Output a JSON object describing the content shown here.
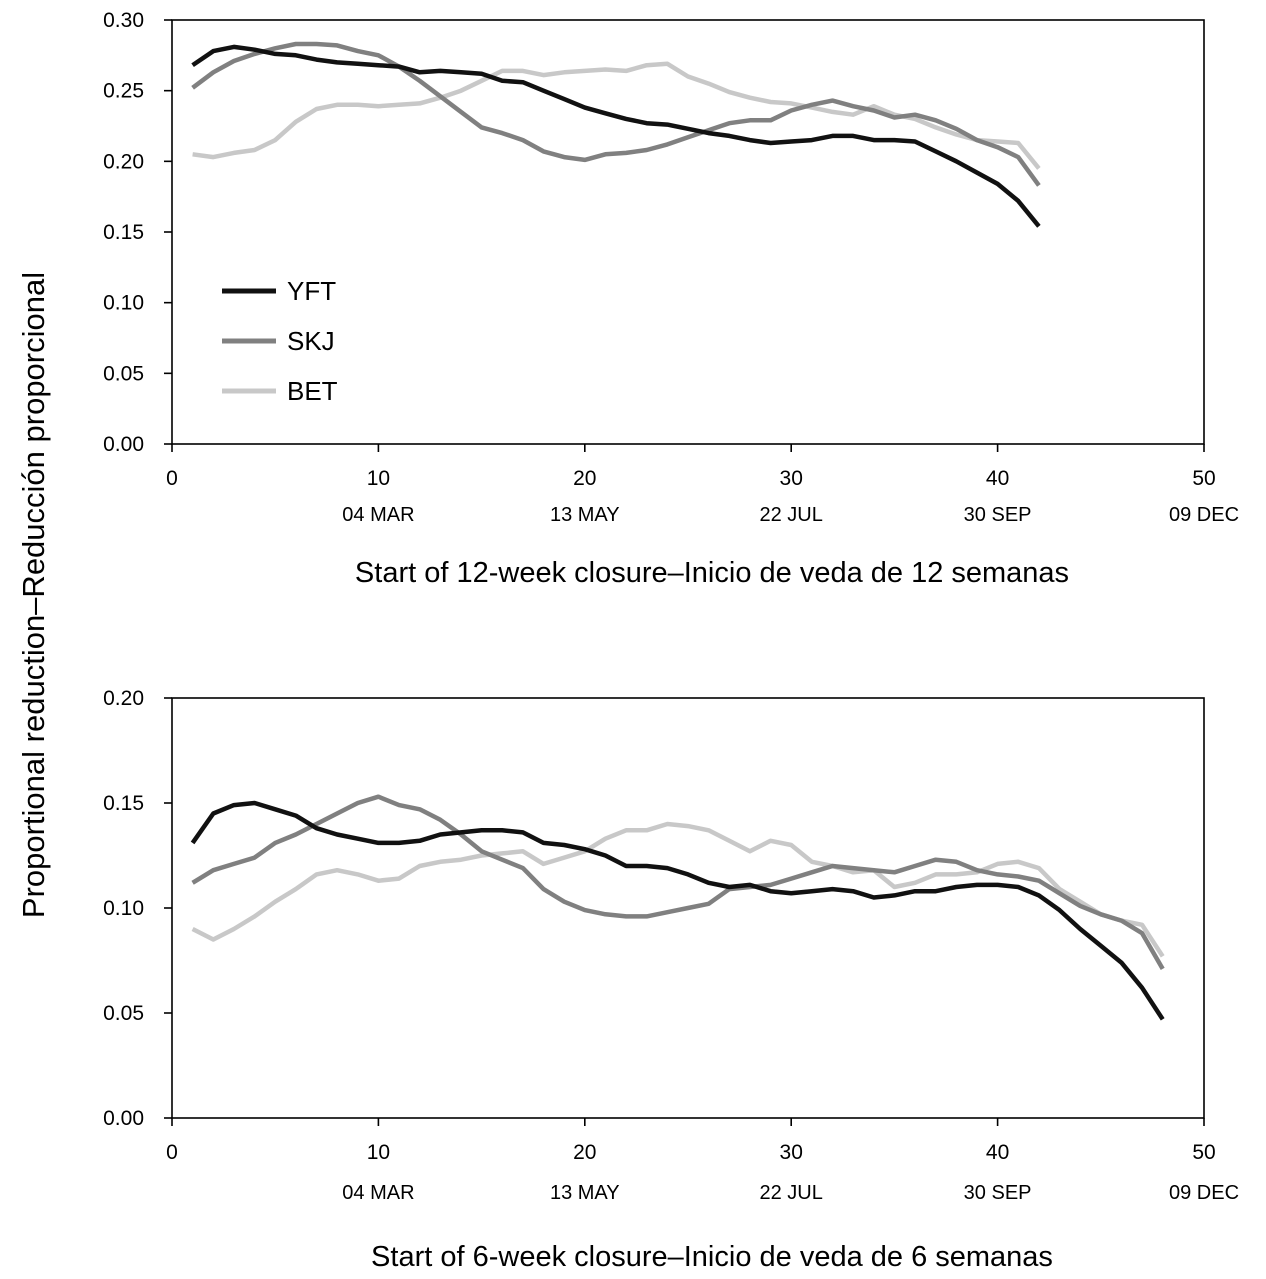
{
  "ylabel": "Proportional reduction–Reducción proporcional",
  "series_colors": {
    "YFT": "#111111",
    "SKJ": "#808080",
    "BET": "#c8c8c8"
  },
  "chart_data": [
    {
      "type": "line",
      "xlabel": "Start of 12-week closure–Inicio de veda de 12 semanas",
      "xlim": [
        0,
        50
      ],
      "ylim": [
        0,
        0.3
      ],
      "xticks": [
        0,
        10,
        20,
        30,
        40,
        50
      ],
      "yticks": [
        "0.00",
        "0.05",
        "0.10",
        "0.15",
        "0.20",
        "0.25",
        "0.30"
      ],
      "date_labels": [
        {
          "x": 10,
          "label": "04 MAR"
        },
        {
          "x": 20,
          "label": "13 MAY"
        },
        {
          "x": 30,
          "label": "22 JUL"
        },
        {
          "x": 40,
          "label": "30 SEP"
        },
        {
          "x": 50,
          "label": "09 DEC"
        }
      ],
      "legend": {
        "position": "left",
        "entries": [
          "YFT",
          "SKJ",
          "BET"
        ]
      },
      "series": [
        {
          "name": "YFT",
          "x": [
            1,
            2,
            3,
            4,
            5,
            6,
            7,
            8,
            9,
            10,
            11,
            12,
            13,
            14,
            15,
            16,
            17,
            18,
            19,
            20,
            21,
            22,
            23,
            24,
            25,
            26,
            27,
            28,
            29,
            30,
            31,
            32,
            33,
            34,
            35,
            36,
            37,
            38,
            39,
            40,
            41,
            42
          ],
          "values": [
            0.268,
            0.278,
            0.281,
            0.279,
            0.276,
            0.275,
            0.272,
            0.27,
            0.269,
            0.268,
            0.267,
            0.263,
            0.264,
            0.263,
            0.262,
            0.257,
            0.256,
            0.25,
            0.244,
            0.238,
            0.234,
            0.23,
            0.227,
            0.226,
            0.223,
            0.22,
            0.218,
            0.215,
            0.213,
            0.214,
            0.215,
            0.218,
            0.218,
            0.215,
            0.215,
            0.214,
            0.207,
            0.2,
            0.192,
            0.184,
            0.172,
            0.154
          ]
        },
        {
          "name": "SKJ",
          "x": [
            1,
            2,
            3,
            4,
            5,
            6,
            7,
            8,
            9,
            10,
            11,
            12,
            13,
            14,
            15,
            16,
            17,
            18,
            19,
            20,
            21,
            22,
            23,
            24,
            25,
            26,
            27,
            28,
            29,
            30,
            31,
            32,
            33,
            34,
            35,
            36,
            37,
            38,
            39,
            40,
            41,
            42
          ],
          "values": [
            0.252,
            0.263,
            0.271,
            0.276,
            0.28,
            0.283,
            0.283,
            0.282,
            0.278,
            0.275,
            0.267,
            0.257,
            0.246,
            0.235,
            0.224,
            0.22,
            0.215,
            0.207,
            0.203,
            0.201,
            0.205,
            0.206,
            0.208,
            0.212,
            0.217,
            0.222,
            0.227,
            0.229,
            0.229,
            0.236,
            0.24,
            0.243,
            0.239,
            0.236,
            0.231,
            0.233,
            0.229,
            0.223,
            0.215,
            0.21,
            0.203,
            0.183
          ]
        },
        {
          "name": "BET",
          "x": [
            1,
            2,
            3,
            4,
            5,
            6,
            7,
            8,
            9,
            10,
            11,
            12,
            13,
            14,
            15,
            16,
            17,
            18,
            19,
            20,
            21,
            22,
            23,
            24,
            25,
            26,
            27,
            28,
            29,
            30,
            31,
            32,
            33,
            34,
            35,
            36,
            37,
            38,
            39,
            40,
            41,
            42
          ],
          "values": [
            0.205,
            0.203,
            0.206,
            0.208,
            0.215,
            0.228,
            0.237,
            0.24,
            0.24,
            0.239,
            0.24,
            0.241,
            0.245,
            0.25,
            0.257,
            0.264,
            0.264,
            0.261,
            0.263,
            0.264,
            0.265,
            0.264,
            0.268,
            0.269,
            0.26,
            0.255,
            0.249,
            0.245,
            0.242,
            0.241,
            0.238,
            0.235,
            0.233,
            0.239,
            0.233,
            0.23,
            0.224,
            0.219,
            0.215,
            0.214,
            0.213,
            0.195
          ]
        }
      ]
    },
    {
      "type": "line",
      "xlabel": "Start of 6-week closure–Inicio de veda de 6 semanas",
      "xlim": [
        0,
        50
      ],
      "ylim": [
        0,
        0.2
      ],
      "xticks": [
        0,
        10,
        20,
        30,
        40,
        50
      ],
      "yticks": [
        "0.00",
        "0.05",
        "0.10",
        "0.15",
        "0.20"
      ],
      "date_labels": [
        {
          "x": 10,
          "label": "04 MAR"
        },
        {
          "x": 20,
          "label": "13 MAY"
        },
        {
          "x": 30,
          "label": "22 JUL"
        },
        {
          "x": 40,
          "label": "30 SEP"
        },
        {
          "x": 50,
          "label": "09 DEC"
        }
      ],
      "series": [
        {
          "name": "YFT",
          "x": [
            1,
            2,
            3,
            4,
            5,
            6,
            7,
            8,
            9,
            10,
            11,
            12,
            13,
            14,
            15,
            16,
            17,
            18,
            19,
            20,
            21,
            22,
            23,
            24,
            25,
            26,
            27,
            28,
            29,
            30,
            31,
            32,
            33,
            34,
            35,
            36,
            37,
            38,
            39,
            40,
            41,
            42,
            43,
            44,
            45,
            46,
            47,
            48
          ],
          "values": [
            0.131,
            0.145,
            0.149,
            0.15,
            0.147,
            0.144,
            0.138,
            0.135,
            0.133,
            0.131,
            0.131,
            0.132,
            0.135,
            0.136,
            0.137,
            0.137,
            0.136,
            0.131,
            0.13,
            0.128,
            0.125,
            0.12,
            0.12,
            0.119,
            0.116,
            0.112,
            0.11,
            0.111,
            0.108,
            0.107,
            0.108,
            0.109,
            0.108,
            0.105,
            0.106,
            0.108,
            0.108,
            0.11,
            0.111,
            0.111,
            0.11,
            0.106,
            0.099,
            0.09,
            0.082,
            0.074,
            0.062,
            0.047
          ]
        },
        {
          "name": "SKJ",
          "x": [
            1,
            2,
            3,
            4,
            5,
            6,
            7,
            8,
            9,
            10,
            11,
            12,
            13,
            14,
            15,
            16,
            17,
            18,
            19,
            20,
            21,
            22,
            23,
            24,
            25,
            26,
            27,
            28,
            29,
            30,
            31,
            32,
            33,
            34,
            35,
            36,
            37,
            38,
            39,
            40,
            41,
            42,
            43,
            44,
            45,
            46,
            47,
            48
          ],
          "values": [
            0.112,
            0.118,
            0.121,
            0.124,
            0.131,
            0.135,
            0.14,
            0.145,
            0.15,
            0.153,
            0.149,
            0.147,
            0.142,
            0.135,
            0.127,
            0.123,
            0.119,
            0.109,
            0.103,
            0.099,
            0.097,
            0.096,
            0.096,
            0.098,
            0.1,
            0.102,
            0.109,
            0.11,
            0.111,
            0.114,
            0.117,
            0.12,
            0.119,
            0.118,
            0.117,
            0.12,
            0.123,
            0.122,
            0.118,
            0.116,
            0.115,
            0.113,
            0.107,
            0.101,
            0.097,
            0.094,
            0.088,
            0.071
          ]
        },
        {
          "name": "BET",
          "x": [
            1,
            2,
            3,
            4,
            5,
            6,
            7,
            8,
            9,
            10,
            11,
            12,
            13,
            14,
            15,
            16,
            17,
            18,
            19,
            20,
            21,
            22,
            23,
            24,
            25,
            26,
            27,
            28,
            29,
            30,
            31,
            32,
            33,
            34,
            35,
            36,
            37,
            38,
            39,
            40,
            41,
            42,
            43,
            44,
            45,
            46,
            47,
            48
          ],
          "values": [
            0.09,
            0.085,
            0.09,
            0.096,
            0.103,
            0.109,
            0.116,
            0.118,
            0.116,
            0.113,
            0.114,
            0.12,
            0.122,
            0.123,
            0.125,
            0.126,
            0.127,
            0.121,
            0.124,
            0.127,
            0.133,
            0.137,
            0.137,
            0.14,
            0.139,
            0.137,
            0.132,
            0.127,
            0.132,
            0.13,
            0.122,
            0.12,
            0.117,
            0.118,
            0.11,
            0.112,
            0.116,
            0.116,
            0.117,
            0.121,
            0.122,
            0.119,
            0.109,
            0.103,
            0.097,
            0.094,
            0.092,
            0.077
          ]
        }
      ]
    }
  ]
}
